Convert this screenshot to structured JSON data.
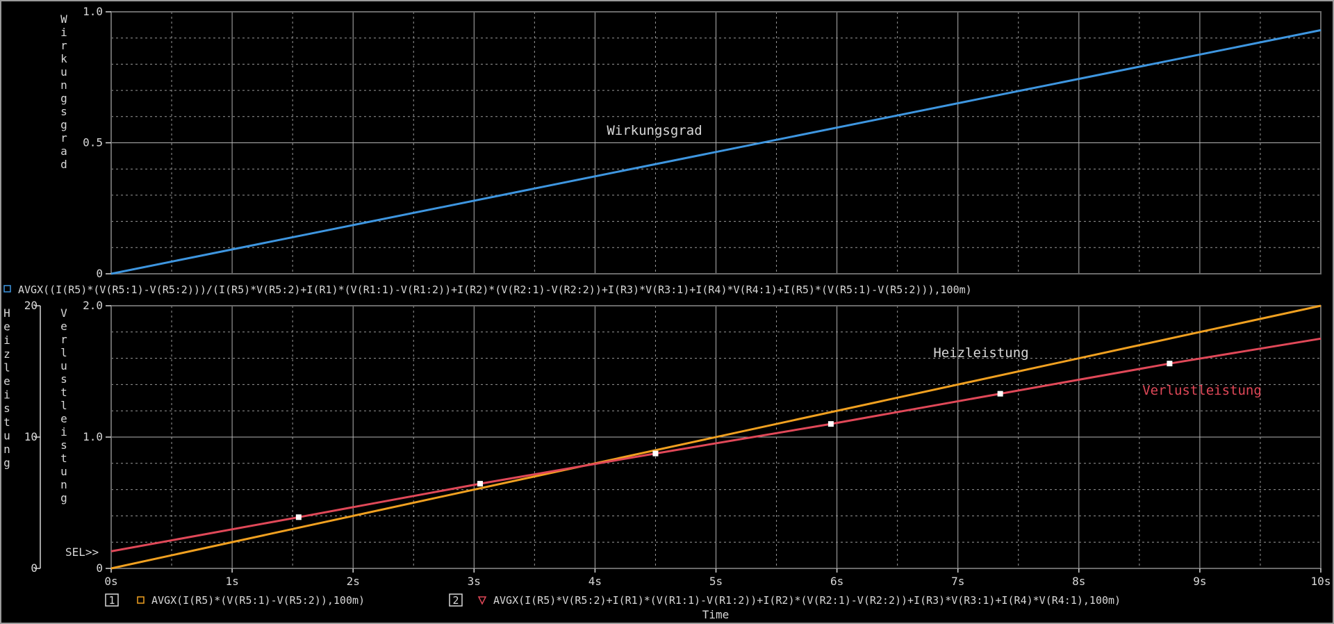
{
  "colors": {
    "background": "#000000",
    "eff": "#3e96e0",
    "heiz": "#f0a020",
    "verl": "#e04858",
    "text": "#d8d8d8",
    "marker": "#ffffff"
  },
  "chart_data": [
    {
      "type": "line",
      "ylabel": "Wirkungsgrad",
      "ylim": [
        0,
        1.0
      ],
      "yticks": [
        "1.0",
        "0.5",
        "0"
      ],
      "xlim": [
        0,
        10
      ],
      "grid": true,
      "annotation": "Wirkungsgrad",
      "series": [
        {
          "x": [
            0,
            10
          ],
          "y": [
            0,
            0.93
          ]
        }
      ],
      "legend_text": "AVGX((I(R5)*(V(R5:1)-V(R5:2)))/(I(R5)*V(R5:2)+I(R1)*(V(R1:1)-V(R1:2))+I(R2)*(V(R2:1)-V(R2:2))+I(R3)*V(R3:1)+I(R4)*V(R4:1)+I(R5)*(V(R5:1)-V(R5:2))),100m)"
    },
    {
      "type": "line",
      "xlabel": "Time",
      "xticks": [
        "0s",
        "1s",
        "2s",
        "3s",
        "4s",
        "5s",
        "6s",
        "7s",
        "8s",
        "9s",
        "10s"
      ],
      "xlim": [
        0,
        10
      ],
      "grid": true,
      "y1label": "Heizleistung",
      "y1lim": [
        0,
        20
      ],
      "y1ticks": [
        "20",
        "10",
        "0"
      ],
      "y2label": "Verlustleistung",
      "y2lim": [
        0,
        2.0
      ],
      "y2ticks": [
        "2.0",
        "1.0",
        "0"
      ],
      "sel_marker": "SEL>>",
      "series": [
        {
          "axis_number": "1",
          "legend_text": "AVGX(I(R5)*(V(R5:1)-V(R5:2)),100m)",
          "annotation": "Heizleistung",
          "x": [
            0,
            10
          ],
          "y": [
            0,
            20.0
          ]
        },
        {
          "axis_number": "2",
          "legend_text": "AVGX(I(R5)*V(R5:2)+I(R1)*(V(R1:1)-V(R1:2))+I(R2)*(V(R2:1)-V(R2:2))+I(R3)*V(R3:1)+I(R4)*V(R4:1),100m)",
          "annotation": "Verlustleistung",
          "x": [
            0,
            1.55,
            3.05,
            4.5,
            5.95,
            7.35,
            8.75,
            10
          ],
          "y": [
            0.13,
            0.39,
            0.645,
            0.875,
            1.1,
            1.33,
            1.56,
            1.75
          ],
          "markers_x": [
            1.55,
            3.05,
            4.5,
            5.95,
            7.35,
            8.75
          ]
        }
      ]
    }
  ]
}
